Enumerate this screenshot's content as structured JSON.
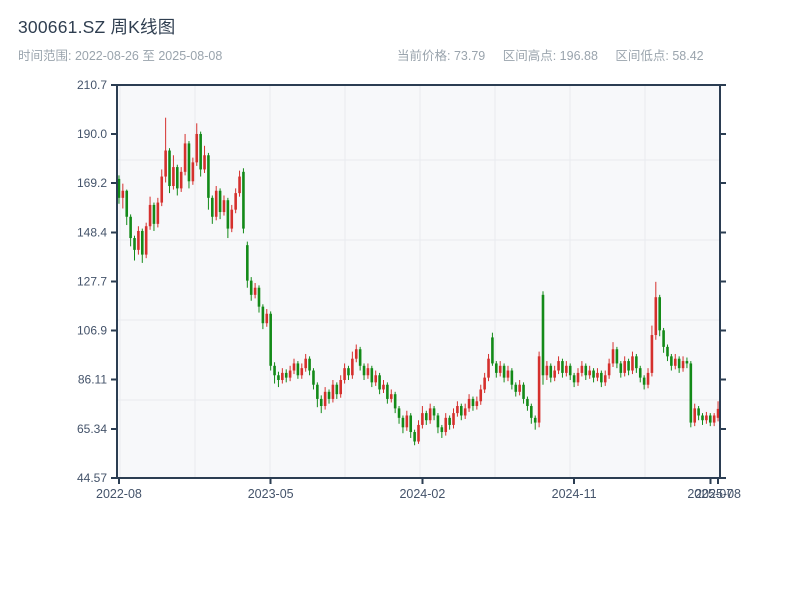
{
  "header": {
    "title": "300661.SZ 周K线图",
    "range_label": "时间范围: 2022-08-26 至 2025-08-08",
    "current_price": "当前价格: 73.79",
    "range_high": "区间高点: 196.88",
    "range_low": "区间低点: 58.42"
  },
  "colors": {
    "up": "#d5302d",
    "down": "#138a18",
    "axis": "#2b3d52",
    "grid": "#e8eaef",
    "plot_bg": "#f7f8fa",
    "tick_label": "#44536a",
    "title_text": "#2f3e50",
    "muted_text": "#9aa4ad"
  },
  "chart_data": {
    "type": "candlestick",
    "title": "300661.SZ 周K线图",
    "interval": "weekly",
    "date_range": [
      "2022-08-26",
      "2025-08-08"
    ],
    "current_price": 73.79,
    "range_high": 196.88,
    "range_low": 58.42,
    "ylim": [
      44.57,
      210.7
    ],
    "y_ticks": [
      210.7,
      190.0,
      169.2,
      148.4,
      127.7,
      106.9,
      86.11,
      65.34,
      44.57
    ],
    "y_tick_labels": [
      "210.7",
      "190.0",
      "169.2",
      "148.4",
      "127.7",
      "106.9",
      "86.11",
      "65.34",
      "44.57"
    ],
    "x_ticks": [
      {
        "i": 0,
        "label": "2022-08"
      },
      {
        "i": 39,
        "label": "2023-05"
      },
      {
        "i": 78,
        "label": "2024-02"
      },
      {
        "i": 117,
        "label": "2024-11"
      },
      {
        "i": 152,
        "label": "2025-07"
      },
      {
        "i": 154,
        "label": "2025-08"
      }
    ],
    "grid": true,
    "legend": "none",
    "color_convention": "red = weekly close above open (up), green = close below open (down)",
    "candles_format": [
      "open",
      "high",
      "low",
      "close"
    ],
    "candles": [
      [
        171,
        172.5,
        160.5,
        163
      ],
      [
        163,
        169,
        158.5,
        166
      ],
      [
        166,
        166.5,
        151.5,
        155
      ],
      [
        155,
        156,
        142.5,
        146
      ],
      [
        146,
        147,
        136.5,
        141
      ],
      [
        141,
        151,
        139,
        149
      ],
      [
        149,
        150,
        135.5,
        139
      ],
      [
        139,
        152.5,
        137.5,
        151
      ],
      [
        151,
        163.5,
        149.5,
        160
      ],
      [
        160,
        161,
        149,
        152
      ],
      [
        152,
        163,
        150.5,
        161
      ],
      [
        161,
        175,
        159.5,
        172
      ],
      [
        172,
        196.88,
        169.5,
        183
      ],
      [
        183,
        184,
        165,
        168
      ],
      [
        168,
        181,
        166.5,
        176
      ],
      [
        176,
        177,
        164,
        167
      ],
      [
        167,
        176,
        165.5,
        174
      ],
      [
        174,
        190,
        172.5,
        186
      ],
      [
        186,
        187,
        167,
        170
      ],
      [
        170,
        180,
        168.5,
        178
      ],
      [
        178,
        194.5,
        176.5,
        190
      ],
      [
        190,
        191,
        172,
        175
      ],
      [
        175,
        185,
        173.5,
        181
      ],
      [
        181,
        182,
        158,
        163
      ],
      [
        163,
        164,
        152,
        155
      ],
      [
        155,
        168,
        153.5,
        166
      ],
      [
        166,
        167,
        154,
        157
      ],
      [
        157,
        164,
        155.5,
        162
      ],
      [
        162,
        163,
        146,
        150
      ],
      [
        150,
        160,
        148.5,
        158
      ],
      [
        158,
        167,
        156.5,
        165
      ],
      [
        165,
        174.5,
        163.5,
        172
      ],
      [
        174,
        175.5,
        148,
        150
      ],
      [
        143,
        144.5,
        125,
        128
      ],
      [
        128,
        129.5,
        119.5,
        122
      ],
      [
        122,
        127,
        120.5,
        125
      ],
      [
        125,
        126,
        114.5,
        117
      ],
      [
        117,
        118,
        107.5,
        110
      ],
      [
        110,
        116,
        108.5,
        114
      ],
      [
        114,
        115,
        90,
        92
      ],
      [
        92,
        93.5,
        84.5,
        88
      ],
      [
        88,
        89.5,
        83,
        86
      ],
      [
        86,
        91,
        84.5,
        89
      ],
      [
        89,
        90.5,
        85,
        87
      ],
      [
        87,
        92,
        85.5,
        90
      ],
      [
        90,
        95,
        88.5,
        93
      ],
      [
        93,
        94,
        86.5,
        88
      ],
      [
        88,
        93,
        86.5,
        91
      ],
      [
        91,
        97,
        89.5,
        95
      ],
      [
        95,
        96,
        88,
        90
      ],
      [
        90,
        91,
        82,
        84
      ],
      [
        84,
        85,
        74.5,
        78
      ],
      [
        78,
        79.5,
        72,
        75
      ],
      [
        75,
        83,
        73.5,
        81
      ],
      [
        81,
        82,
        76,
        78
      ],
      [
        78,
        86,
        76.5,
        84
      ],
      [
        84,
        85,
        78,
        80
      ],
      [
        80,
        88,
        78.5,
        86
      ],
      [
        86,
        93,
        84.5,
        91
      ],
      [
        91,
        92,
        86,
        88
      ],
      [
        88,
        98,
        86.5,
        95
      ],
      [
        95,
        101,
        93.5,
        99
      ],
      [
        99,
        100,
        90,
        92
      ],
      [
        92,
        93,
        86,
        88
      ],
      [
        88,
        93,
        86.5,
        91
      ],
      [
        91,
        92,
        83,
        85
      ],
      [
        85,
        90,
        83.5,
        88
      ],
      [
        88,
        89,
        80,
        82
      ],
      [
        82,
        86,
        80.5,
        84
      ],
      [
        84,
        85,
        76,
        78
      ],
      [
        78,
        82,
        76.5,
        80
      ],
      [
        80,
        81,
        72,
        74
      ],
      [
        74,
        75,
        67.5,
        70
      ],
      [
        70,
        71,
        63.5,
        66
      ],
      [
        66,
        73,
        64.5,
        71
      ],
      [
        71,
        72,
        61.5,
        64
      ],
      [
        64,
        65,
        58.42,
        60
      ],
      [
        60,
        69,
        59,
        67
      ],
      [
        67,
        75,
        65.5,
        72
      ],
      [
        72,
        73,
        67,
        69
      ],
      [
        69,
        76,
        67.5,
        74
      ],
      [
        74,
        75,
        69,
        71
      ],
      [
        71,
        72,
        63.5,
        66
      ],
      [
        66,
        67,
        61.5,
        64
      ],
      [
        64,
        72,
        62.5,
        70
      ],
      [
        70,
        71,
        65,
        67
      ],
      [
        67,
        74,
        65.5,
        72
      ],
      [
        72,
        77,
        70.5,
        75
      ],
      [
        75,
        76,
        69,
        71
      ],
      [
        71,
        76,
        69.5,
        74
      ],
      [
        74,
        80,
        72.5,
        78
      ],
      [
        78,
        79,
        73,
        75
      ],
      [
        75,
        79,
        73.5,
        77
      ],
      [
        77,
        84,
        75.5,
        82
      ],
      [
        82,
        89,
        80.5,
        87
      ],
      [
        87,
        97,
        85.5,
        95
      ],
      [
        104,
        106,
        92,
        93
      ],
      [
        93,
        94,
        87,
        89
      ],
      [
        89,
        94,
        87.5,
        92
      ],
      [
        92,
        93,
        85,
        87
      ],
      [
        87,
        92,
        85.5,
        90
      ],
      [
        90,
        91,
        82,
        84
      ],
      [
        84,
        85,
        79,
        81
      ],
      [
        81,
        86,
        79.5,
        84
      ],
      [
        84,
        85,
        76,
        78
      ],
      [
        78,
        79,
        73,
        75
      ],
      [
        75,
        76,
        67.5,
        70
      ],
      [
        70,
        71,
        65,
        68
      ],
      [
        68,
        98,
        66,
        96
      ],
      [
        122,
        123.5,
        84,
        88
      ],
      [
        88,
        94,
        86,
        92
      ],
      [
        92,
        93,
        85,
        87
      ],
      [
        87,
        92,
        85.5,
        90
      ],
      [
        90,
        96,
        88.5,
        94
      ],
      [
        94,
        95,
        87,
        89
      ],
      [
        89,
        94,
        87.5,
        92
      ],
      [
        92,
        93,
        86,
        88
      ],
      [
        88,
        89,
        83,
        85
      ],
      [
        85,
        91,
        83.5,
        89
      ],
      [
        89,
        94,
        87.5,
        92
      ],
      [
        92,
        93,
        86,
        88
      ],
      [
        88,
        92,
        86.5,
        90
      ],
      [
        90,
        91,
        85,
        87
      ],
      [
        87,
        91,
        85.5,
        89
      ],
      [
        89,
        90,
        83,
        85
      ],
      [
        85,
        90,
        83.5,
        88
      ],
      [
        88,
        95,
        86.5,
        93
      ],
      [
        93,
        102,
        91.5,
        99
      ],
      [
        99,
        100,
        91,
        93
      ],
      [
        93,
        94,
        87,
        89
      ],
      [
        89,
        96,
        87.5,
        94
      ],
      [
        94,
        95,
        88,
        90
      ],
      [
        90,
        98,
        88.5,
        96
      ],
      [
        96,
        97,
        89,
        91
      ],
      [
        91,
        92,
        85,
        87
      ],
      [
        87,
        88,
        82,
        84
      ],
      [
        84,
        91,
        82.5,
        89
      ],
      [
        89,
        109,
        87.5,
        105
      ],
      [
        105,
        127.5,
        103,
        121
      ],
      [
        121,
        122,
        104.5,
        107
      ],
      [
        107,
        108,
        97.5,
        100
      ],
      [
        100,
        101,
        94,
        96
      ],
      [
        96,
        97,
        90,
        92
      ],
      [
        92,
        97,
        90.5,
        95
      ],
      [
        95,
        96,
        89,
        91
      ],
      [
        91,
        96,
        89.5,
        94
      ],
      [
        94,
        95.5,
        91,
        93
      ],
      [
        93,
        94,
        66,
        68
      ],
      [
        68,
        76,
        66.5,
        74
      ],
      [
        74,
        75,
        69,
        71
      ],
      [
        71,
        72,
        67,
        69
      ],
      [
        69,
        72.5,
        67.5,
        71
      ],
      [
        71,
        72,
        66.5,
        68
      ],
      [
        68,
        72,
        66.5,
        71
      ],
      [
        70,
        77,
        68.5,
        73.79
      ]
    ]
  }
}
